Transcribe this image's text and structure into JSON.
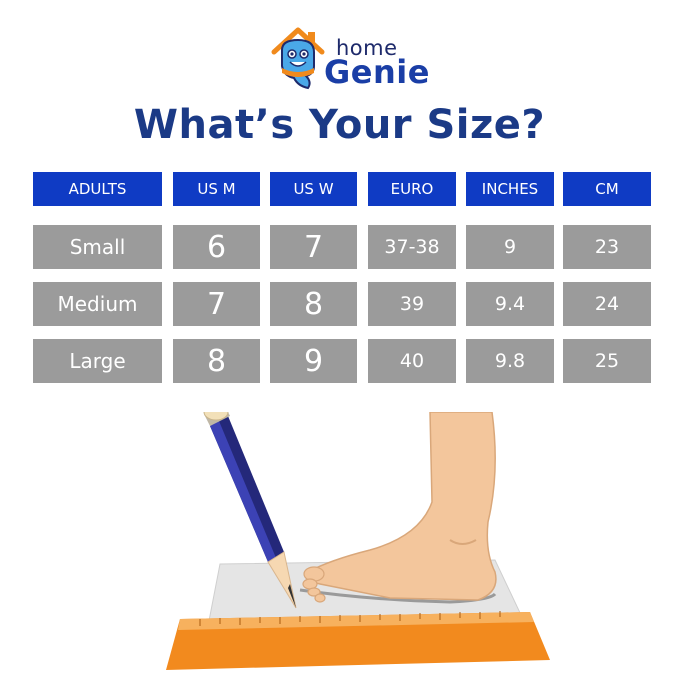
{
  "brand": {
    "home": "home",
    "genie": "Genie"
  },
  "headline": "What’s Your Size?",
  "table": {
    "headers": [
      "ADULTS",
      "US M",
      "US W",
      "EURO",
      "INCHES",
      "CM"
    ],
    "rows": [
      [
        "Small",
        "6",
        "7",
        "37-38",
        "9",
        "23"
      ],
      [
        "Medium",
        "7",
        "8",
        "39",
        "9.4",
        "24"
      ],
      [
        "Large",
        "8",
        "9",
        "40",
        "9.8",
        "25"
      ]
    ]
  },
  "colors": {
    "header_bg": "#0f3bc4",
    "cell_bg": "#9b9b9b",
    "headline": "#1b3a86",
    "logo": "#1a3ea6"
  },
  "icons": [
    "genie-house-logo-icon",
    "foot-measuring-illustration"
  ]
}
